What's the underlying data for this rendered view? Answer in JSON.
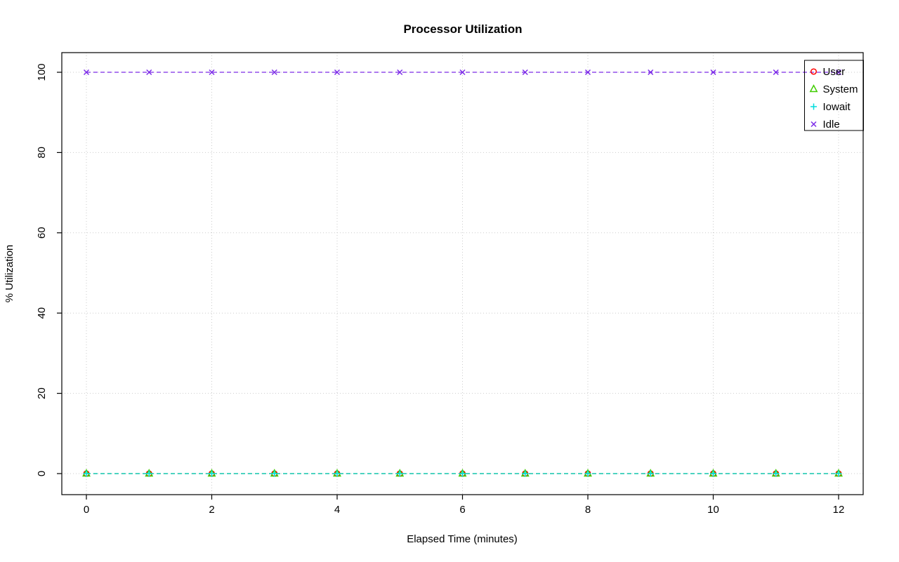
{
  "chart_data": {
    "type": "line",
    "title": "Processor Utilization",
    "xlabel": "Elapsed Time (minutes)",
    "ylabel": "% Utilization",
    "x": [
      0,
      1,
      2,
      3,
      4,
      5,
      6,
      7,
      8,
      9,
      10,
      11,
      12
    ],
    "series": [
      {
        "name": "User",
        "color": "#FF0000",
        "marker": "circle",
        "values": [
          0,
          0,
          0,
          0,
          0,
          0,
          0,
          0,
          0,
          0,
          0,
          0,
          0
        ]
      },
      {
        "name": "System",
        "color": "#3FCC00",
        "marker": "triangle",
        "values": [
          0,
          0,
          0,
          0,
          0,
          0,
          0,
          0,
          0,
          0,
          0,
          0,
          0
        ]
      },
      {
        "name": "Iowait",
        "color": "#00DDDD",
        "marker": "plus",
        "values": [
          0,
          0,
          0,
          0,
          0,
          0,
          0,
          0,
          0,
          0,
          0,
          0,
          0
        ]
      },
      {
        "name": "Idle",
        "color": "#7C2BE8",
        "marker": "x",
        "values": [
          100,
          100,
          100,
          100,
          100,
          100,
          100,
          100,
          100,
          100,
          100,
          100,
          100
        ]
      }
    ],
    "xticks": [
      0,
      2,
      4,
      6,
      8,
      10,
      12
    ],
    "yticks": [
      0,
      20,
      40,
      60,
      80,
      100
    ],
    "xlim": [
      0,
      12
    ],
    "ylim": [
      0,
      100
    ],
    "grid": true,
    "grid_color": "#CBCBCB",
    "line_style": "dashed",
    "legend_position": "top-right",
    "legend_labels": [
      "User",
      "System",
      "Iowait",
      "Idle"
    ]
  }
}
